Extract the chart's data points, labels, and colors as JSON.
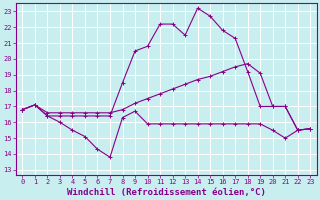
{
  "background_color": "#c8eef0",
  "grid_color": "#aadddd",
  "line_color": "#880088",
  "xlabel": "Windchill (Refroidissement éolien,°C)",
  "xlabel_fontsize": 6.5,
  "yticks": [
    13,
    14,
    15,
    16,
    17,
    18,
    19,
    20,
    21,
    22,
    23
  ],
  "xticks": [
    0,
    1,
    2,
    3,
    4,
    5,
    6,
    7,
    8,
    9,
    10,
    11,
    12,
    13,
    14,
    15,
    16,
    17,
    18,
    19,
    20,
    21,
    22,
    23
  ],
  "xlim": [
    -0.5,
    23.5
  ],
  "ylim": [
    12.7,
    23.5
  ],
  "curve_dip_x": [
    0,
    1,
    2,
    3,
    4,
    5,
    6,
    7,
    8,
    9,
    10,
    11,
    12,
    13,
    14,
    15,
    16,
    17,
    18,
    19,
    20,
    21,
    22,
    23
  ],
  "curve_dip_y": [
    16.8,
    17.1,
    16.4,
    16.0,
    15.5,
    15.1,
    14.3,
    13.8,
    16.3,
    16.7,
    15.9,
    15.9,
    15.9,
    15.9,
    15.9,
    15.9,
    15.9,
    15.9,
    15.9,
    15.9,
    15.5,
    15.0,
    15.5,
    15.6
  ],
  "curve_peak_x": [
    0,
    1,
    2,
    3,
    4,
    5,
    6,
    7,
    8,
    9,
    10,
    11,
    12,
    13,
    14,
    15,
    16,
    17,
    18,
    19,
    20,
    21,
    22,
    23
  ],
  "curve_peak_y": [
    16.8,
    17.1,
    16.4,
    16.4,
    16.4,
    16.4,
    16.4,
    16.4,
    18.5,
    20.5,
    20.8,
    22.2,
    22.2,
    21.5,
    23.2,
    22.7,
    21.8,
    21.3,
    19.2,
    17.0,
    17.0,
    17.0,
    15.5,
    15.6
  ],
  "curve_diag_x": [
    0,
    1,
    2,
    3,
    4,
    5,
    6,
    7,
    8,
    9,
    10,
    11,
    12,
    13,
    14,
    15,
    16,
    17,
    18,
    19,
    20,
    21,
    22,
    23
  ],
  "curve_diag_y": [
    16.8,
    17.1,
    16.6,
    16.6,
    16.6,
    16.6,
    16.6,
    16.6,
    16.8,
    17.2,
    17.5,
    17.8,
    18.1,
    18.4,
    18.7,
    18.9,
    19.2,
    19.5,
    19.7,
    19.1,
    17.0,
    17.0,
    15.5,
    15.6
  ]
}
